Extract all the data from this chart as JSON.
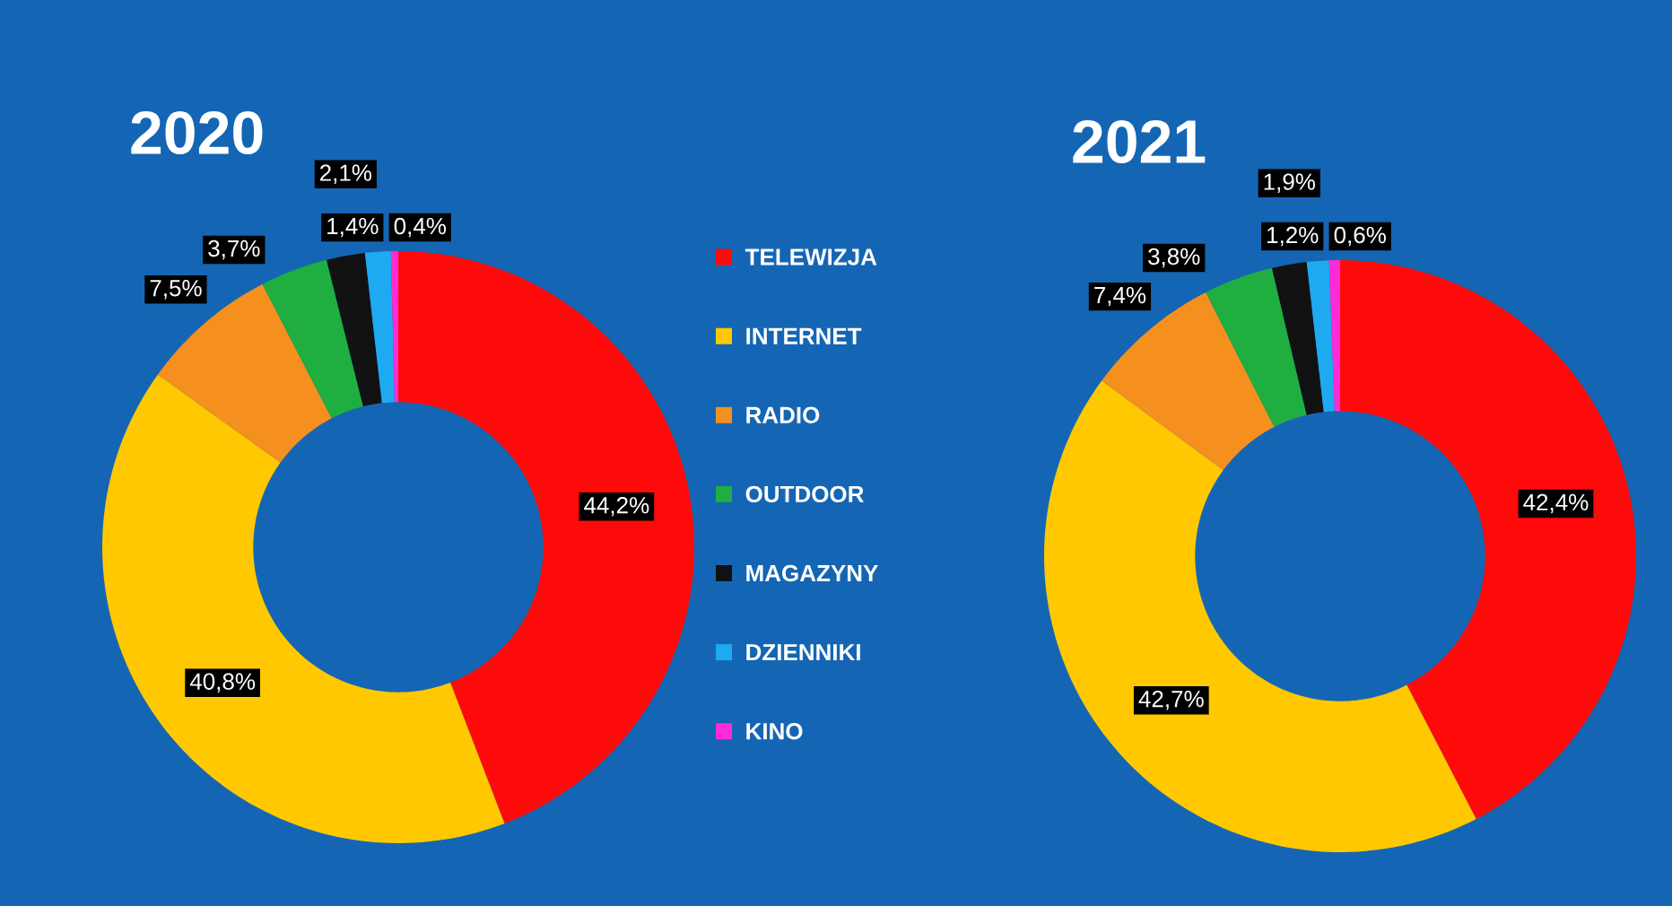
{
  "chart_data": [
    {
      "type": "donut",
      "title": "2020",
      "categories": [
        "TELEWIZJA",
        "INTERNET",
        "RADIO",
        "OUTDOOR",
        "MAGAZYNY",
        "DZIENNIKI",
        "KINO"
      ],
      "values": [
        44.2,
        40.8,
        7.5,
        3.7,
        2.1,
        1.4,
        0.4
      ],
      "value_labels": [
        "44,2%",
        "40,8%",
        "7,5%",
        "3,7%",
        "2,1%",
        "1,4%",
        "0,4%"
      ],
      "colors": [
        "#ff0a0a",
        "#ffc800",
        "#f5901e",
        "#1fae3f",
        "#111111",
        "#1eaaf1",
        "#ff2bd6"
      ],
      "legend": "right"
    },
    {
      "type": "donut",
      "title": "2021",
      "categories": [
        null,
        null,
        null,
        null,
        null,
        null,
        null
      ],
      "values": [
        42.4,
        42.7,
        7.4,
        3.8,
        1.9,
        1.2,
        0.6
      ],
      "value_labels": [
        "42,4%",
        "42,7%",
        "7,4%",
        "3,8%",
        "1,9%",
        "1,2%",
        "0,6%"
      ],
      "colors": [
        "#ff0a0a",
        "#ffc800",
        "#f5901e",
        "#1fae3f",
        "#111111",
        "#1eaaf1",
        "#ff2bd6"
      ]
    }
  ]
}
